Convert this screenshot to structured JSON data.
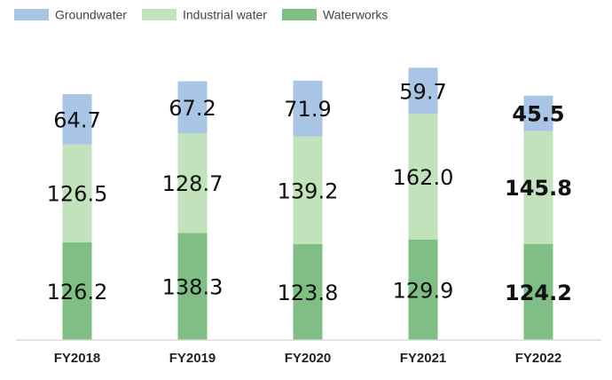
{
  "chart_data": {
    "type": "bar",
    "stacked": true,
    "categories": [
      "FY2018",
      "FY2019",
      "FY2020",
      "FY2021",
      "FY2022"
    ],
    "series": [
      {
        "name": "Waterworks",
        "color": "#7fbf86",
        "values": [
          126.2,
          138.3,
          123.8,
          129.9,
          124.2
        ]
      },
      {
        "name": "Industrial water",
        "color": "#c2e2bc",
        "values": [
          126.5,
          128.7,
          139.2,
          162.0,
          145.8
        ]
      },
      {
        "name": "Groundwater",
        "color": "#a9c5e6",
        "values": [
          64.7,
          67.2,
          71.9,
          59.7,
          45.5
        ]
      }
    ],
    "legend_order": [
      "Groundwater",
      "Industrial water",
      "Waterworks"
    ],
    "labels": [
      [
        "126.2",
        "138.3",
        "123.8",
        "129.9",
        "124.2"
      ],
      [
        "126.5",
        "128.7",
        "139.2",
        "162.0",
        "145.8"
      ],
      [
        "64.7",
        "67.2",
        "71.9",
        "59.7",
        "45.5"
      ]
    ],
    "bold_categories": [
      "FY2022"
    ],
    "ylim": [
      0,
      360
    ],
    "title": "",
    "xlabel": "",
    "ylabel": "",
    "grid": false,
    "legend_position": "top-left"
  }
}
